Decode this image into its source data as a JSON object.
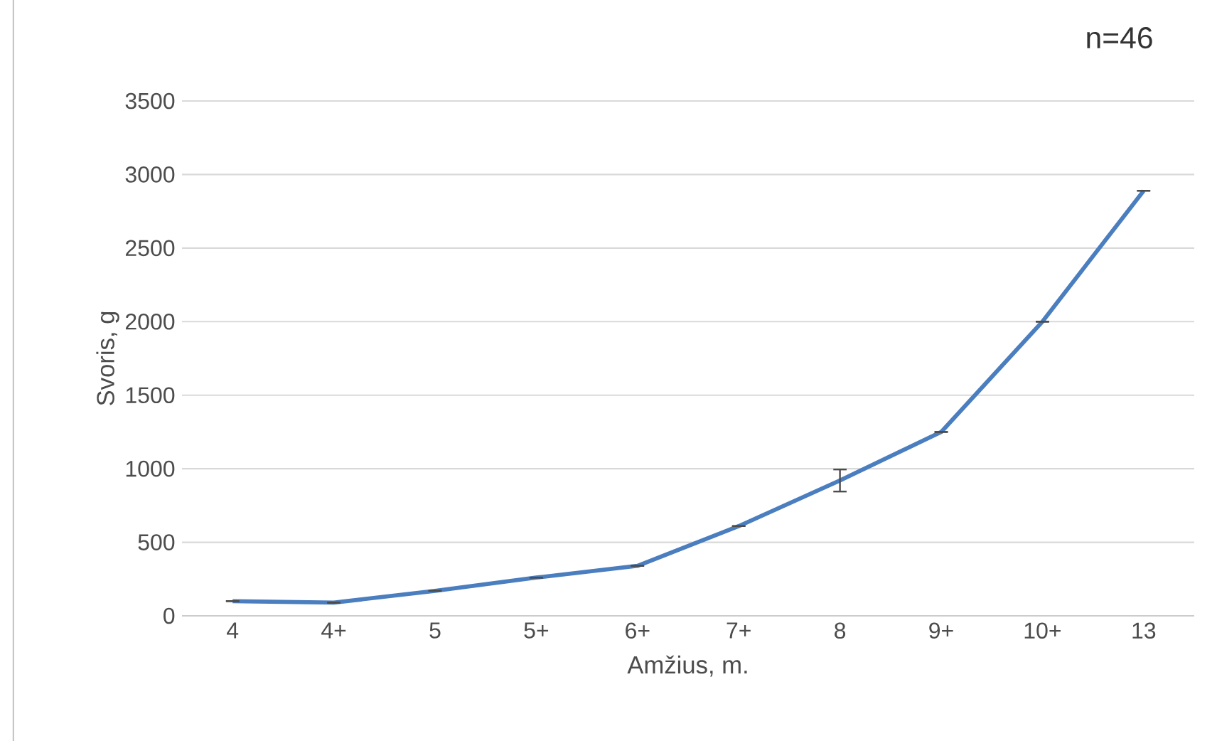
{
  "chart_data": {
    "type": "line",
    "xlabel": "Amžius, m.",
    "ylabel": "Svoris, g",
    "categories": [
      "4",
      "4+",
      "5",
      "5+",
      "6+",
      "7+",
      "8",
      "9+",
      "10+",
      "13"
    ],
    "values": [
      100,
      90,
      170,
      260,
      340,
      610,
      920,
      1250,
      2000,
      2890
    ],
    "errors": [
      0,
      0,
      0,
      0,
      0,
      0,
      75,
      0,
      0,
      0
    ],
    "color": "#4a7ebf",
    "ylim": [
      0,
      3500
    ],
    "yticks": [
      0,
      500,
      1000,
      1500,
      2000,
      2500,
      3000,
      3500
    ],
    "grid": "y",
    "marker": "none",
    "line_style": "solid",
    "annotations": [
      "n=46"
    ]
  }
}
